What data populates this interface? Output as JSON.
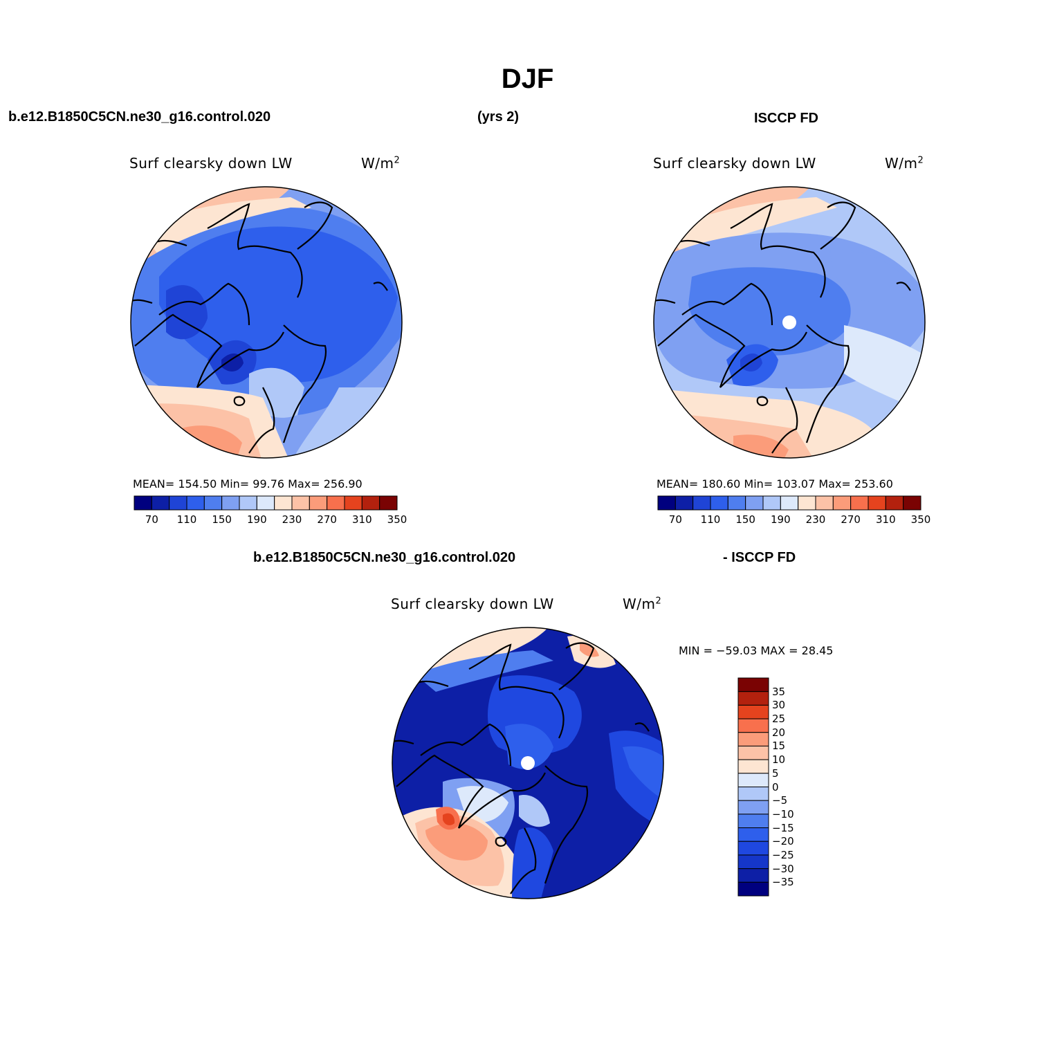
{
  "title": "DJF",
  "header": {
    "case": "b.e12.B1850C5CN.ne30_g16.control.020",
    "years": "(yrs 2)",
    "obs": "ISCCP FD",
    "diff_case": "b.e12.B1850C5CN.ne30_g16.control.020",
    "diff_obs": "- ISCCP FD"
  },
  "panels": {
    "model": {
      "variable": "Surf clearsky down LW",
      "units": "W/m",
      "units_sup": "2",
      "stats": "MEAN=  154.50   Min=   99.76   Max=  256.90"
    },
    "obs": {
      "variable": "Surf clearsky down LW",
      "units": "W/m",
      "units_sup": "2",
      "stats": "MEAN=  180.60   Min=  103.07   Max=  253.60"
    },
    "diff": {
      "variable": "Surf clearsky down LW",
      "units": "W/m",
      "units_sup": "2",
      "stats": "MIN = −59.03 MAX =   28.45"
    }
  },
  "colorbars": {
    "abs": {
      "colors": [
        "#00007f",
        "#0d1fa6",
        "#1f44d6",
        "#2e5fec",
        "#4f7eef",
        "#7fa0f2",
        "#b0c8f8",
        "#dde9fb",
        "#fde5d2",
        "#fcc2a7",
        "#fb9c7a",
        "#f8704d",
        "#e5431e",
        "#b3210e",
        "#7a0303"
      ],
      "labels": [
        "70",
        "110",
        "150",
        "190",
        "230",
        "270",
        "310",
        "350"
      ]
    },
    "diff": {
      "colors": [
        "#00007f",
        "#0d1fa6",
        "#1536c9",
        "#1f48e0",
        "#2e5fec",
        "#4f7eef",
        "#7fa0f2",
        "#b0c8f8",
        "#dde9fb",
        "#fde5d2",
        "#fcc2a7",
        "#fb9c7a",
        "#f8704d",
        "#e5431e",
        "#b3210e",
        "#7a0303"
      ],
      "labels": [
        "35",
        "30",
        "25",
        "20",
        "15",
        "10",
        "5",
        "0",
        "−5",
        "−10",
        "−15",
        "−20",
        "−25",
        "−30",
        "−35"
      ]
    }
  }
}
